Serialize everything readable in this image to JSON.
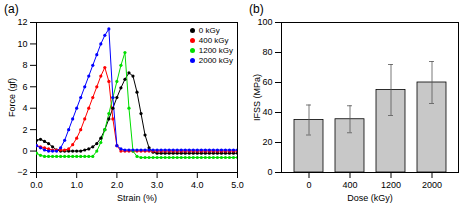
{
  "chart_data": [
    {
      "type": "line",
      "title": "(a)",
      "x_label": "Strain (%)",
      "y_label": "Force (gf)",
      "x": [
        0,
        0.1,
        0.2,
        0.3,
        0.4,
        0.5,
        0.6,
        0.7,
        0.8,
        0.9,
        1.0,
        1.1,
        1.2,
        1.3,
        1.4,
        1.5,
        1.6,
        1.7,
        1.8,
        1.9,
        2.0,
        2.1,
        2.2,
        2.3,
        2.4,
        2.5,
        2.6,
        2.7,
        2.8,
        2.9,
        3.0,
        3.1,
        3.2,
        3.3,
        3.4,
        3.5,
        3.6,
        3.7,
        3.8,
        3.9,
        4.0,
        4.1,
        4.2,
        4.3,
        4.4,
        4.5,
        4.6,
        4.7,
        4.8,
        4.9,
        5.0
      ],
      "series": [
        {
          "name": "0 kGy",
          "color": "#000000",
          "values": [
            1.0,
            1.1,
            0.9,
            0.7,
            0.4,
            0.1,
            0,
            0,
            0,
            0,
            0,
            0,
            0.1,
            0.2,
            0.4,
            0.7,
            1.2,
            2.0,
            3.0,
            4.0,
            5.0,
            5.9,
            6.7,
            7.3,
            7.0,
            5.5,
            3.5,
            1.5,
            0.3,
            -0.1,
            -0.2,
            -0.2,
            -0.2,
            -0.2,
            -0.2,
            -0.2,
            -0.2,
            -0.2,
            -0.2,
            -0.2,
            -0.2,
            -0.2,
            -0.2,
            -0.2,
            -0.2,
            -0.2,
            -0.2,
            -0.2,
            -0.2,
            -0.2,
            -0.2
          ]
        },
        {
          "name": "400 kGy",
          "color": "#ff0000",
          "values": [
            0.5,
            0.4,
            0.3,
            0.2,
            0.1,
            0.1,
            0.1,
            0.1,
            0.2,
            0.6,
            1.2,
            2.0,
            3.0,
            4.0,
            5.0,
            6.0,
            7.0,
            7.8,
            6.5,
            3.0,
            0.5,
            0,
            0,
            0,
            0,
            0,
            0,
            0,
            0,
            0,
            0,
            0,
            0,
            0,
            0,
            0,
            0,
            0,
            0,
            0,
            0,
            0,
            0,
            0,
            0,
            0,
            0,
            0,
            0,
            0,
            0
          ]
        },
        {
          "name": "1200 kGy",
          "color": "#00dd00",
          "values": [
            -0.2,
            -0.4,
            -0.5,
            -0.5,
            -0.5,
            -0.5,
            -0.5,
            -0.5,
            -0.5,
            -0.5,
            -0.5,
            -0.5,
            -0.5,
            -0.5,
            -0.5,
            0,
            0.8,
            2.0,
            3.5,
            5.0,
            6.5,
            8.0,
            9.2,
            4.0,
            0,
            -0.5,
            -0.6,
            -0.6,
            -0.6,
            -0.6,
            -0.6,
            -0.6,
            -0.6,
            -0.6,
            -0.6,
            -0.6,
            -0.6,
            -0.6,
            -0.6,
            -0.6,
            -0.6,
            -0.6,
            -0.6,
            -0.6,
            -0.6,
            -0.6,
            -0.6,
            -0.6,
            -0.6,
            -0.6,
            -0.6
          ]
        },
        {
          "name": "2000 kGy",
          "color": "#0000ff",
          "values": [
            0.5,
            0.3,
            0.1,
            0,
            0,
            0,
            0.3,
            1.0,
            2.0,
            3.0,
            4.0,
            5.0,
            6.0,
            7.0,
            8.0,
            9.0,
            10.0,
            10.8,
            11.4,
            5.0,
            0.5,
            0.2,
            0.1,
            0.1,
            0.1,
            0.1,
            0.1,
            0.1,
            0.1,
            0.1,
            0.1,
            0.1,
            0.1,
            0.1,
            0.1,
            0.1,
            0.1,
            0.1,
            0.1,
            0.1,
            0.1,
            0.1,
            0.1,
            0.1,
            0.1,
            0.1,
            0.1,
            0.1,
            0.1,
            0.1,
            0.1
          ]
        }
      ],
      "xlim": [
        0,
        5
      ],
      "xticks": [
        0,
        1,
        2,
        3,
        4,
        5
      ],
      "ylim": [
        -2,
        12
      ],
      "yticks": [
        -2,
        0,
        2,
        4,
        6,
        8,
        10,
        12
      ],
      "legend": "top-right",
      "marker": "circle",
      "line_style": "solid"
    },
    {
      "type": "bar",
      "title": "(b)",
      "x_label": "Dose (kGy)",
      "y_label": "IFSS (MPa)",
      "categories": [
        "0",
        "400",
        "1200",
        "2000"
      ],
      "values": [
        35,
        35.5,
        55,
        60
      ],
      "errors": [
        10,
        9,
        17,
        14
      ],
      "color": "#c8c8c8",
      "ylim": [
        0,
        100
      ],
      "yticks": [
        0,
        20,
        40,
        60,
        80,
        100
      ]
    }
  ]
}
